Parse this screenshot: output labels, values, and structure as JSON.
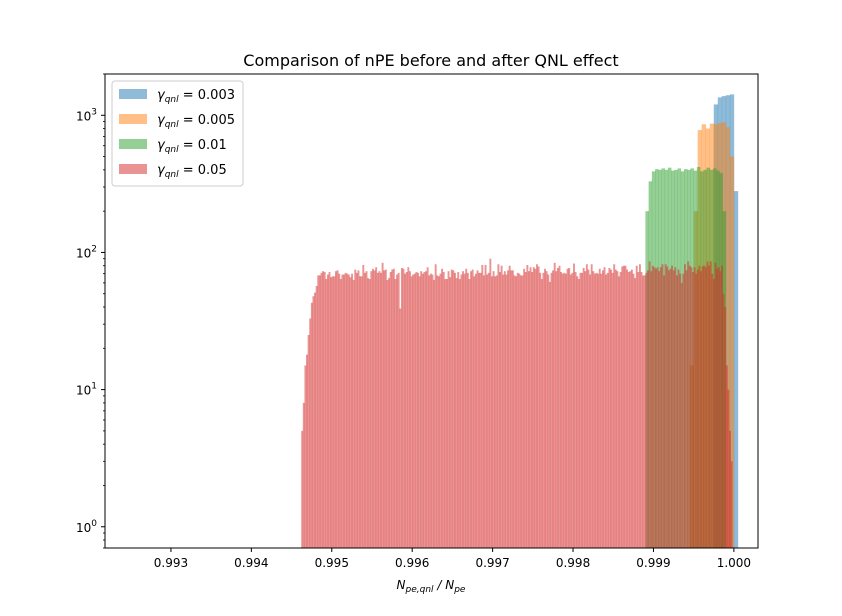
{
  "chart_data": {
    "type": "histogram",
    "title": "Comparison of nPE before and after QNL effect",
    "xlabel": "N_{pe,qnl} / N_{pe}",
    "xlabel_parts": {
      "main": "N",
      "sub": "pe,qnl",
      "sep": " / ",
      "main2": "N",
      "sub2": "pe"
    },
    "ylabel": "",
    "x_scale": "linear",
    "y_scale": "log",
    "xlim": [
      0.99218,
      1.0003
    ],
    "ylim": [
      0.7,
      2000
    ],
    "x_ticks": [
      {
        "value": 0.993,
        "label": "0.993"
      },
      {
        "value": 0.994,
        "label": "0.994"
      },
      {
        "value": 0.995,
        "label": "0.995"
      },
      {
        "value": 0.996,
        "label": "0.996"
      },
      {
        "value": 0.997,
        "label": "0.997"
      },
      {
        "value": 0.998,
        "label": "0.998"
      },
      {
        "value": 0.999,
        "label": "0.999"
      },
      {
        "value": 1.0,
        "label": "1.000"
      }
    ],
    "y_ticks": [
      {
        "value": 1,
        "base": "10",
        "exp": "0"
      },
      {
        "value": 10,
        "base": "10",
        "exp": "1"
      },
      {
        "value": 100,
        "base": "10",
        "exp": "2"
      },
      {
        "value": 1000,
        "base": "10",
        "exp": "3"
      }
    ],
    "legend": {
      "placement": "upper-left"
    },
    "alpha": 0.5,
    "series": [
      {
        "name_symbol": "γ",
        "name_sub": "qnl",
        "name_value": " = 0.003",
        "color": "#1f77b4",
        "bins": [
          {
            "x0": 0.99975,
            "x1": 0.9998,
            "count": 1200
          },
          {
            "x0": 0.9998,
            "x1": 0.99985,
            "count": 1350
          },
          {
            "x0": 0.99985,
            "x1": 0.9999,
            "count": 1380
          },
          {
            "x0": 0.9999,
            "x1": 0.99995,
            "count": 1400
          },
          {
            "x0": 0.99995,
            "x1": 1.0,
            "count": 1420
          },
          {
            "x0": 1.0,
            "x1": 1.00005,
            "count": 280
          }
        ]
      },
      {
        "name_symbol": "γ",
        "name_sub": "qnl",
        "name_value": " = 0.005",
        "color": "#ff7f0e",
        "bins": [
          {
            "x0": 0.99945,
            "x1": 0.9995,
            "count": 15
          },
          {
            "x0": 0.9995,
            "x1": 0.99955,
            "count": 200
          },
          {
            "x0": 0.99955,
            "x1": 0.9996,
            "count": 780
          },
          {
            "x0": 0.9996,
            "x1": 0.99965,
            "count": 860
          },
          {
            "x0": 0.99965,
            "x1": 0.9997,
            "count": 800
          },
          {
            "x0": 0.9997,
            "x1": 0.99975,
            "count": 870
          },
          {
            "x0": 0.99975,
            "x1": 0.9998,
            "count": 860
          },
          {
            "x0": 0.9998,
            "x1": 0.99985,
            "count": 880
          },
          {
            "x0": 0.99985,
            "x1": 0.9999,
            "count": 890
          },
          {
            "x0": 0.9999,
            "x1": 0.99995,
            "count": 820
          },
          {
            "x0": 0.99995,
            "x1": 1.0,
            "count": 500
          }
        ]
      },
      {
        "name_symbol": "γ",
        "name_sub": "qnl",
        "name_value": " = 0.01",
        "color": "#2ca02c",
        "bins": [
          {
            "x0": 0.9989,
            "x1": 0.99894,
            "count": 200
          },
          {
            "x0": 0.99894,
            "x1": 0.99898,
            "count": 330
          },
          {
            "x0": 0.99898,
            "x1": 0.99902,
            "count": 390
          },
          {
            "x0": 0.99902,
            "x1": 0.99906,
            "count": 405
          },
          {
            "x0": 0.99906,
            "x1": 0.9991,
            "count": 400
          },
          {
            "x0": 0.9991,
            "x1": 0.99914,
            "count": 410
          },
          {
            "x0": 0.99914,
            "x1": 0.99918,
            "count": 400
          },
          {
            "x0": 0.99918,
            "x1": 0.99922,
            "count": 415
          },
          {
            "x0": 0.99922,
            "x1": 0.99926,
            "count": 395
          },
          {
            "x0": 0.99926,
            "x1": 0.9993,
            "count": 400
          },
          {
            "x0": 0.9993,
            "x1": 0.99934,
            "count": 410
          },
          {
            "x0": 0.99934,
            "x1": 0.99938,
            "count": 390
          },
          {
            "x0": 0.99938,
            "x1": 0.99942,
            "count": 405
          },
          {
            "x0": 0.99942,
            "x1": 0.99946,
            "count": 400
          },
          {
            "x0": 0.99946,
            "x1": 0.9995,
            "count": 410
          },
          {
            "x0": 0.9995,
            "x1": 0.99954,
            "count": 395
          },
          {
            "x0": 0.99954,
            "x1": 0.99958,
            "count": 420
          },
          {
            "x0": 0.99958,
            "x1": 0.99962,
            "count": 390
          },
          {
            "x0": 0.99962,
            "x1": 0.99966,
            "count": 400
          },
          {
            "x0": 0.99966,
            "x1": 0.9997,
            "count": 415
          },
          {
            "x0": 0.9997,
            "x1": 0.99974,
            "count": 400
          },
          {
            "x0": 0.99974,
            "x1": 0.99978,
            "count": 410
          },
          {
            "x0": 0.99978,
            "x1": 0.99982,
            "count": 395
          },
          {
            "x0": 0.99982,
            "x1": 0.99986,
            "count": 380
          },
          {
            "x0": 0.99986,
            "x1": 0.9999,
            "count": 200
          }
        ]
      },
      {
        "name_symbol": "γ",
        "name_sub": "qnl",
        "name_value": " = 0.05",
        "color": "#d62728",
        "bins_range": [
          0.99462,
          0.99998
        ],
        "bin_width": 2e-05,
        "counts": [
          5,
          8,
          15,
          18,
          25,
          33,
          43,
          48,
          51,
          57,
          68,
          68,
          71,
          73,
          72,
          64,
          69,
          72,
          66,
          67,
          67,
          73,
          74,
          70,
          64,
          69,
          69,
          71,
          70,
          69,
          66,
          70,
          63,
          75,
          71,
          74,
          67,
          67,
          81,
          71,
          73,
          65,
          64,
          73,
          76,
          74,
          78,
          71,
          73,
          71,
          84,
          74,
          75,
          63,
          65,
          72,
          75,
          76,
          64,
          69,
          71,
          39,
          77,
          76,
          70,
          72,
          78,
          73,
          67,
          69,
          70,
          72,
          71,
          67,
          73,
          70,
          72,
          73,
          78,
          68,
          70,
          69,
          63,
          82,
          68,
          67,
          70,
          76,
          72,
          64,
          64,
          73,
          66,
          75,
          74,
          71,
          65,
          72,
          64,
          69,
          73,
          70,
          76,
          71,
          64,
          73,
          75,
          67,
          70,
          74,
          71,
          71,
          81,
          68,
          81,
          69,
          71,
          90,
          67,
          73,
          67,
          68,
          82,
          72,
          80,
          69,
          73,
          69,
          74,
          80,
          74,
          74,
          68,
          67,
          71,
          70,
          68,
          68,
          76,
          72,
          81,
          73,
          78,
          72,
          78,
          76,
          82,
          79,
          71,
          64,
          71,
          76,
          73,
          69,
          61,
          71,
          74,
          84,
          73,
          77,
          80,
          72,
          70,
          71,
          70,
          76,
          77,
          69,
          71,
          83,
          72,
          67,
          64,
          71,
          71,
          77,
          73,
          82,
          75,
          69,
          82,
          73,
          70,
          71,
          70,
          76,
          70,
          74,
          78,
          69,
          71,
          77,
          75,
          71,
          82,
          75,
          73,
          67,
          72,
          79,
          80,
          80,
          75,
          72,
          73,
          75,
          70,
          65,
          80,
          72,
          82,
          72,
          68,
          68,
          71,
          74,
          86,
          73,
          80,
          78,
          76,
          78,
          73,
          78,
          82,
          68,
          82,
          79,
          74,
          76,
          80,
          74,
          78,
          68,
          75,
          70,
          60,
          70,
          82,
          74,
          86,
          80,
          78,
          72,
          78,
          70,
          75,
          80,
          73,
          79,
          80,
          78,
          86,
          80,
          86,
          70,
          64,
          84,
          76,
          78,
          73,
          80,
          50,
          40,
          15,
          10,
          5,
          3
        ]
      }
    ]
  }
}
